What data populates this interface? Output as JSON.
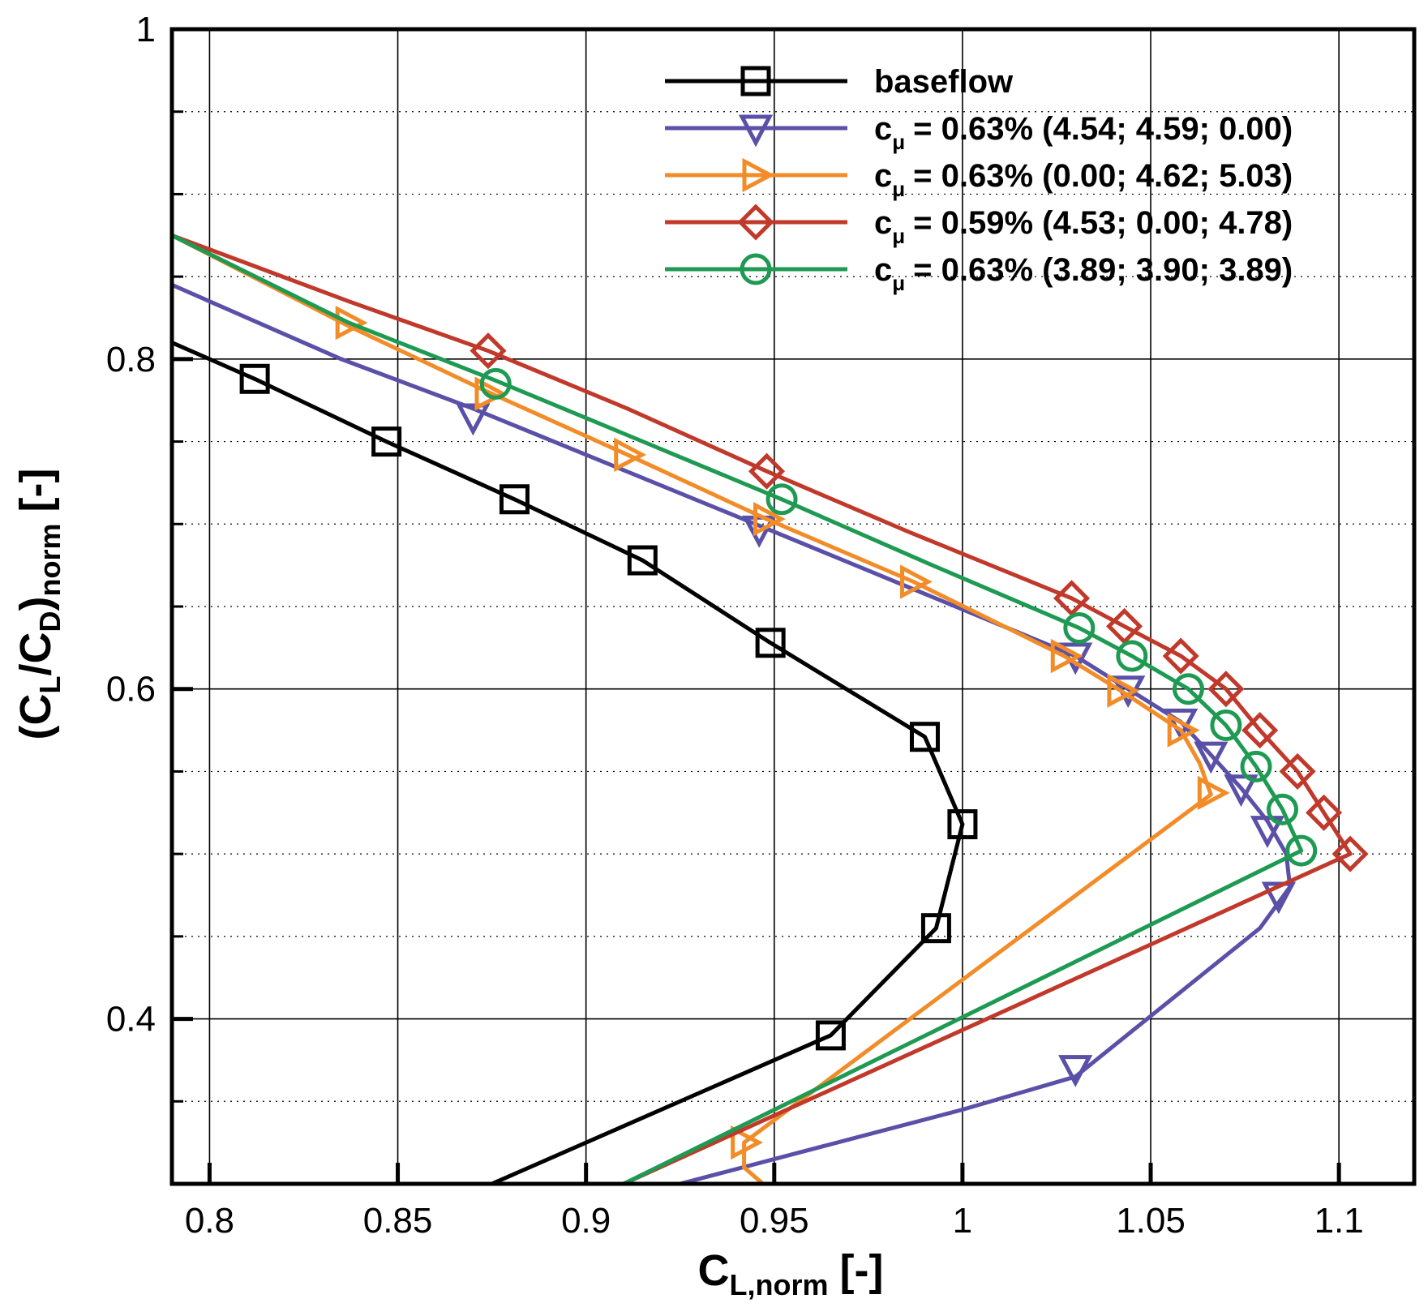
{
  "chart_data": {
    "type": "line",
    "title": "",
    "xlabel": {
      "main": "C",
      "sub": "L,norm",
      "unit": "[-]"
    },
    "ylabel": {
      "open": "(C",
      "sub1": "L",
      "mid": "/C",
      "sub2": "D",
      "close": ")",
      "sub3": "norm",
      "unit": "[-]"
    },
    "xlim": [
      0.79,
      1.12
    ],
    "ylim": [
      0.3,
      1.0
    ],
    "x_ticks": [
      {
        "v": 0.8,
        "label": "0.8"
      },
      {
        "v": 0.85,
        "label": "0.85"
      },
      {
        "v": 0.9,
        "label": "0.9"
      },
      {
        "v": 0.95,
        "label": "0.95"
      },
      {
        "v": 1.0,
        "label": "1"
      },
      {
        "v": 1.05,
        "label": "1.05"
      },
      {
        "v": 1.1,
        "label": "1.1"
      }
    ],
    "y_ticks": [
      {
        "v": 0.4,
        "label": "0.4"
      },
      {
        "v": 0.6,
        "label": "0.6"
      },
      {
        "v": 0.8,
        "label": "0.8"
      },
      {
        "v": 1.0,
        "label": "1"
      }
    ],
    "y_minor": [
      0.35,
      0.45,
      0.5,
      0.55,
      0.65,
      0.7,
      0.75,
      0.85,
      0.9,
      0.95
    ],
    "legend_position": "top-right",
    "series": [
      {
        "name": "baseflow",
        "legend_main": "baseflow",
        "legend_sub": "",
        "legend_rest": "",
        "color": "#000000",
        "marker": "square",
        "line": [
          [
            0.79,
            0.81
          ],
          [
            0.812,
            0.788
          ],
          [
            0.847,
            0.75
          ],
          [
            0.881,
            0.715
          ],
          [
            0.915,
            0.678
          ],
          [
            0.949,
            0.628
          ],
          [
            0.99,
            0.571
          ],
          [
            1.0,
            0.518
          ],
          [
            0.993,
            0.455
          ],
          [
            0.965,
            0.39
          ],
          [
            0.875,
            0.3
          ]
        ],
        "markers": [
          [
            0.812,
            0.788
          ],
          [
            0.847,
            0.75
          ],
          [
            0.881,
            0.715
          ],
          [
            0.915,
            0.678
          ],
          [
            0.949,
            0.628
          ],
          [
            0.99,
            0.571
          ],
          [
            1.0,
            0.518
          ],
          [
            0.993,
            0.455
          ],
          [
            0.965,
            0.39
          ]
        ]
      },
      {
        "name": "c_mu = 0.63% (4.54; 4.59; 0.00)",
        "legend_main": "c",
        "legend_sub": "μ",
        "legend_rest": "= 0.63% (4.54; 4.59; 0.00)",
        "color": "#5a50a8",
        "marker": "triangle-down",
        "line": [
          [
            0.79,
            0.845
          ],
          [
            0.835,
            0.8
          ],
          [
            0.87,
            0.77
          ],
          [
            0.945,
            0.7
          ],
          [
            1.03,
            0.62
          ],
          [
            1.044,
            0.6
          ],
          [
            1.058,
            0.58
          ],
          [
            1.066,
            0.56
          ],
          [
            1.074,
            0.54
          ],
          [
            1.081,
            0.52
          ],
          [
            1.086,
            0.5
          ],
          [
            1.087,
            0.48
          ],
          [
            1.079,
            0.455
          ],
          [
            1.03,
            0.365
          ],
          [
            1.0,
            0.345
          ],
          [
            0.925,
            0.3
          ]
        ],
        "markers": [
          [
            0.87,
            0.765
          ],
          [
            0.946,
            0.697
          ],
          [
            1.03,
            0.62
          ],
          [
            1.044,
            0.6
          ],
          [
            1.058,
            0.58
          ],
          [
            1.066,
            0.56
          ],
          [
            1.074,
            0.54
          ],
          [
            1.081,
            0.515
          ],
          [
            1.084,
            0.475
          ],
          [
            1.03,
            0.37
          ]
        ]
      },
      {
        "name": "c_mu = 0.63% (0.00; 4.62; 5.03)",
        "legend_main": "c",
        "legend_sub": "μ",
        "legend_rest": "= 0.63% (0.00; 4.62; 5.03)",
        "color": "#f28c28",
        "marker": "triangle-right",
        "line": [
          [
            0.79,
            0.875
          ],
          [
            0.837,
            0.82
          ],
          [
            0.874,
            0.78
          ],
          [
            0.911,
            0.742
          ],
          [
            0.948,
            0.703
          ],
          [
            0.987,
            0.665
          ],
          [
            1.027,
            0.62
          ],
          [
            1.042,
            0.599
          ],
          [
            1.058,
            0.575
          ],
          [
            1.063,
            0.555
          ],
          [
            1.066,
            0.536
          ],
          [
            0.942,
            0.325
          ],
          [
            0.942,
            0.31
          ],
          [
            0.947,
            0.3
          ]
        ],
        "markers": [
          [
            0.837,
            0.822
          ],
          [
            0.874,
            0.779
          ],
          [
            0.911,
            0.742
          ],
          [
            0.948,
            0.703
          ],
          [
            0.987,
            0.665
          ],
          [
            1.027,
            0.62
          ],
          [
            1.042,
            0.599
          ],
          [
            1.058,
            0.575
          ],
          [
            1.066,
            0.537
          ],
          [
            0.942,
            0.325
          ]
        ]
      },
      {
        "name": "c_mu = 0.59% (4.53; 0.00; 4.78)",
        "legend_main": "c",
        "legend_sub": "μ",
        "legend_rest": "= 0.59% (4.53; 0.00; 4.78)",
        "color": "#c0392b",
        "marker": "diamond",
        "line": [
          [
            0.79,
            0.875
          ],
          [
            0.837,
            0.835
          ],
          [
            0.874,
            0.805
          ],
          [
            0.911,
            0.77
          ],
          [
            0.948,
            0.732
          ],
          [
            0.986,
            0.695
          ],
          [
            1.029,
            0.655
          ],
          [
            1.043,
            0.638
          ],
          [
            1.058,
            0.62
          ],
          [
            1.07,
            0.6
          ],
          [
            1.079,
            0.575
          ],
          [
            1.089,
            0.55
          ],
          [
            1.096,
            0.525
          ],
          [
            1.103,
            0.5
          ],
          [
            0.91,
            0.3
          ]
        ],
        "markers": [
          [
            0.874,
            0.805
          ],
          [
            0.948,
            0.732
          ],
          [
            1.029,
            0.655
          ],
          [
            1.043,
            0.638
          ],
          [
            1.058,
            0.62
          ],
          [
            1.07,
            0.6
          ],
          [
            1.079,
            0.575
          ],
          [
            1.089,
            0.55
          ],
          [
            1.096,
            0.525
          ],
          [
            1.103,
            0.5
          ]
        ]
      },
      {
        "name": "c_mu = 0.63% (3.89; 3.90; 3.89)",
        "legend_main": "c",
        "legend_sub": "μ",
        "legend_rest": "= 0.63% (3.89; 3.90; 3.89)",
        "color": "#1e9a52",
        "marker": "circle",
        "line": [
          [
            0.79,
            0.875
          ],
          [
            0.837,
            0.822
          ],
          [
            0.876,
            0.787
          ],
          [
            0.913,
            0.752
          ],
          [
            0.952,
            0.715
          ],
          [
            0.99,
            0.677
          ],
          [
            1.031,
            0.637
          ],
          [
            1.045,
            0.62
          ],
          [
            1.06,
            0.6
          ],
          [
            1.07,
            0.578
          ],
          [
            1.078,
            0.553
          ],
          [
            1.085,
            0.527
          ],
          [
            1.09,
            0.502
          ],
          [
            0.91,
            0.3
          ]
        ],
        "markers": [
          [
            0.876,
            0.785
          ],
          [
            0.952,
            0.715
          ],
          [
            1.031,
            0.637
          ],
          [
            1.045,
            0.62
          ],
          [
            1.06,
            0.6
          ],
          [
            1.07,
            0.578
          ],
          [
            1.078,
            0.553
          ],
          [
            1.085,
            0.527
          ],
          [
            1.09,
            0.502
          ]
        ]
      }
    ]
  }
}
